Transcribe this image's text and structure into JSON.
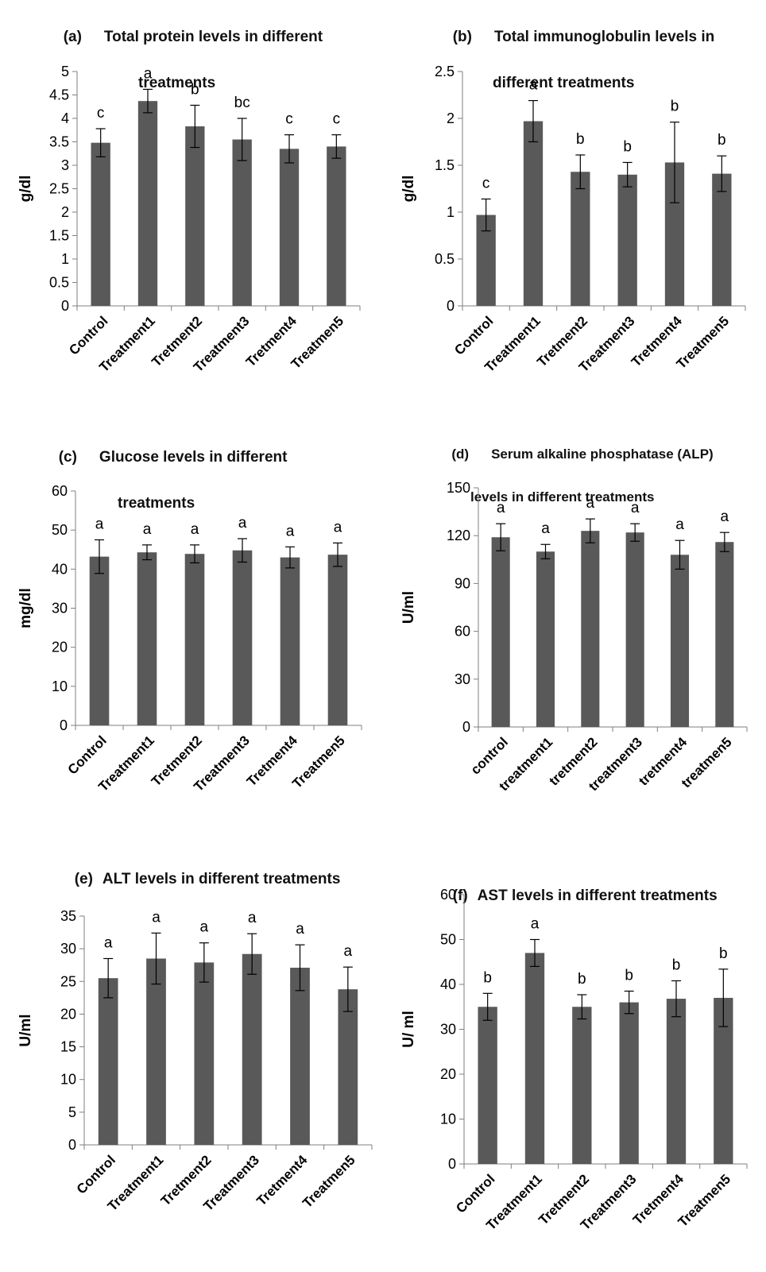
{
  "figure": {
    "charts": [
      {
        "id": "a",
        "tag": "(a)",
        "title_line1": "Total protein levels in different",
        "title_line2": "treatments",
        "ylabel": "g/dl",
        "bar_color": "#595959"
      },
      {
        "id": "b",
        "tag": "(b)",
        "title_line1": "Total immunoglobulin levels in",
        "title_line2": "different treatments",
        "ylabel": "g/dl",
        "bar_color": "#595959"
      },
      {
        "id": "c",
        "tag": "(c)",
        "title_line1": "Glucose levels in different",
        "title_line2": "treatments",
        "ylabel": "mg/dl",
        "bar_color": "#595959"
      },
      {
        "id": "d",
        "tag": "(d)",
        "title_line1": "Serum alkaline phosphatase (ALP)",
        "title_line2": "levels in different treatments",
        "ylabel": "U/ml",
        "bar_color": "#595959"
      },
      {
        "id": "e",
        "tag": "(e)",
        "title_line1": "ALT levels in different treatments",
        "title_line2": "",
        "ylabel": "U/ml",
        "bar_color": "#595959"
      },
      {
        "id": "f",
        "tag": "(f)",
        "title_line1": "AST levels in different treatments",
        "title_line2": "",
        "ylabel": "U/ ml",
        "bar_color": "#595959"
      }
    ]
  },
  "chart_data": [
    {
      "type": "bar",
      "title": "Total protein levels in different treatments",
      "categories": [
        "Control",
        "Treatment1",
        "Tretment2",
        "Treatment3",
        "Tretment4",
        "Treatmen5"
      ],
      "values": [
        3.48,
        4.37,
        3.83,
        3.55,
        3.35,
        3.4
      ],
      "errors": [
        0.3,
        0.25,
        0.45,
        0.45,
        0.3,
        0.25
      ],
      "annotations": [
        "c",
        "a",
        "b",
        "bc",
        "c",
        "c"
      ],
      "ylabel": "g/dl",
      "ylim": [
        0,
        5
      ],
      "yticks": [
        "0",
        "0.5",
        "1",
        "1.5",
        "2",
        "2.5",
        "3",
        "3.5",
        "4",
        "4.5",
        "5"
      ],
      "grid": false
    },
    {
      "type": "bar",
      "title": "Total immunoglobulin levels in different treatments",
      "categories": [
        "Control",
        "Treatment1",
        "Tretment2",
        "Treatment3",
        "Tretment4",
        "Treatmen5"
      ],
      "values": [
        0.97,
        1.97,
        1.43,
        1.4,
        1.53,
        1.41
      ],
      "errors": [
        0.17,
        0.22,
        0.18,
        0.13,
        0.43,
        0.19
      ],
      "annotations": [
        "c",
        "a",
        "b",
        "b",
        "b",
        "b"
      ],
      "ylabel": "g/dl",
      "ylim": [
        0,
        2.5
      ],
      "yticks": [
        "0",
        "0.5",
        "1",
        "1.5",
        "2",
        "2.5"
      ],
      "grid": false
    },
    {
      "type": "bar",
      "title": "Glucose levels in different treatments",
      "categories": [
        "Control",
        "Treatment1",
        "Tretment2",
        "Treatment3",
        "Tretment4",
        "Treatmen5"
      ],
      "values": [
        43.2,
        44.3,
        43.9,
        44.8,
        43.0,
        43.7
      ],
      "errors": [
        4.3,
        1.9,
        2.3,
        3.0,
        2.7,
        3.0
      ],
      "annotations": [
        "a",
        "a",
        "a",
        "a",
        "a",
        "a"
      ],
      "ylabel": "mg/dl",
      "ylim": [
        0,
        60
      ],
      "yticks": [
        "0",
        "10",
        "20",
        "30",
        "40",
        "50",
        "60"
      ],
      "grid": false
    },
    {
      "type": "bar",
      "title": "Serum alkaline phosphatase (ALP) levels in different treatments",
      "categories": [
        "control",
        "treatment1",
        "tretment2",
        "treatment3",
        "tretment4",
        "treatmen5"
      ],
      "values": [
        119,
        110,
        123,
        122,
        108,
        116
      ],
      "errors": [
        8.5,
        4.5,
        7.5,
        5.5,
        9,
        6
      ],
      "annotations": [
        "a",
        "a",
        "a",
        "a",
        "a",
        "a"
      ],
      "ylabel": "U/ml",
      "ylim": [
        0,
        150
      ],
      "yticks": [
        "0",
        "30",
        "60",
        "90",
        "120",
        "150"
      ],
      "grid": false
    },
    {
      "type": "bar",
      "title": "ALT levels in different treatments",
      "categories": [
        "Control",
        "Treatment1",
        "Tretment2",
        "Treatment3",
        "Tretment4",
        "Treatmen5"
      ],
      "values": [
        25.5,
        28.5,
        27.9,
        29.2,
        27.1,
        23.8
      ],
      "errors": [
        3.0,
        3.9,
        3.0,
        3.1,
        3.5,
        3.4
      ],
      "annotations": [
        "a",
        "a",
        "a",
        "a",
        "a",
        "a"
      ],
      "ylabel": "U/ml",
      "ylim": [
        0,
        35
      ],
      "yticks": [
        "0",
        "5",
        "10",
        "15",
        "20",
        "25",
        "30",
        "35"
      ],
      "grid": false
    },
    {
      "type": "bar",
      "title": "AST levels in different treatments",
      "categories": [
        "Control",
        "Treatment1",
        "Tretment2",
        "Treatment3",
        "Tretment4",
        "Treatmen5"
      ],
      "values": [
        35.0,
        47.0,
        35.0,
        36.0,
        36.8,
        37.0
      ],
      "errors": [
        3.0,
        3.0,
        2.7,
        2.5,
        4.0,
        6.4
      ],
      "annotations": [
        "b",
        "a",
        "b",
        "b",
        "b",
        "b"
      ],
      "ylabel": "U/ ml",
      "ylim": [
        0,
        60
      ],
      "yticks": [
        "0",
        "10",
        "20",
        "30",
        "40",
        "50",
        "60"
      ],
      "grid": false
    }
  ]
}
